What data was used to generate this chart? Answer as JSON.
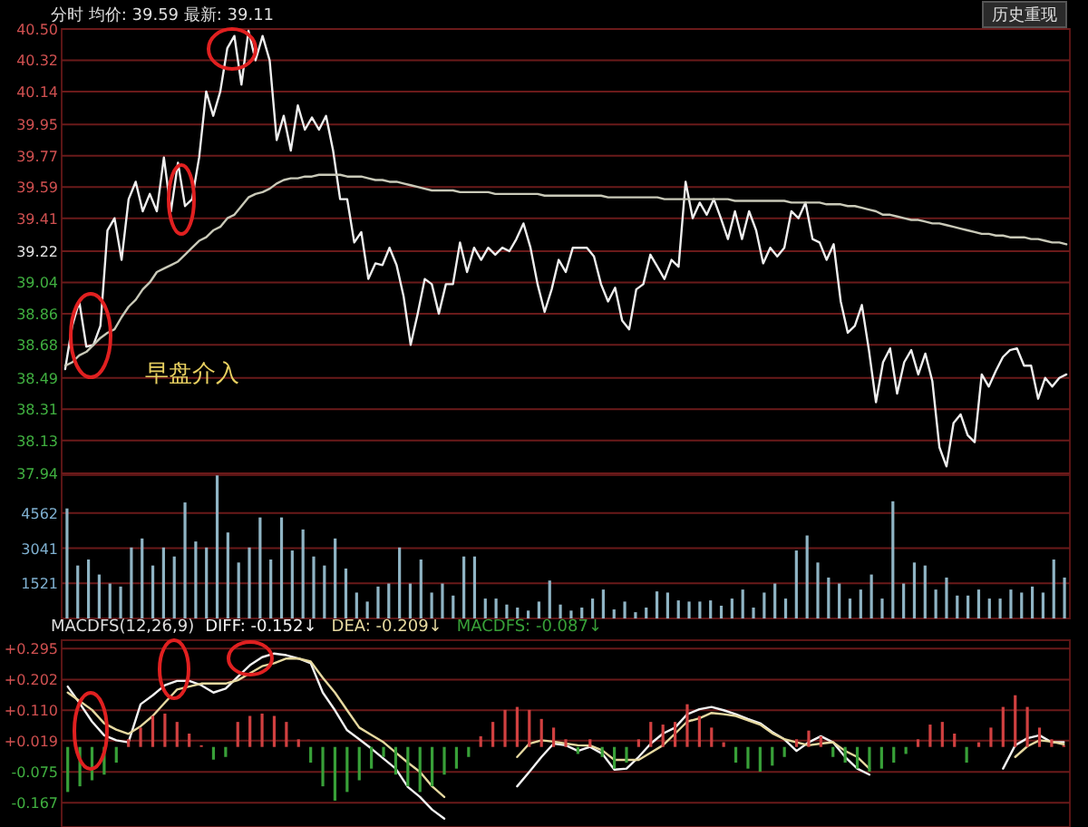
{
  "chart_data": [
    {
      "type": "line",
      "title": "分时  均价: 39.59  最新: 39.11",
      "ylim": [
        37.94,
        40.5
      ],
      "yticks": [
        {
          "value": 40.5,
          "label": "40.50"
        },
        40.32,
        40.14,
        39.95,
        39.77,
        39.59,
        39.41,
        39.22,
        39.04,
        38.86,
        38.68,
        38.49,
        38.31,
        38.13,
        37.94
      ],
      "grid": "y",
      "tick_labels": "y",
      "annotations": [
        "早盘介入",
        "历史重现"
      ],
      "categories": [
        null,
        null,
        null,
        null,
        null,
        null,
        null,
        null,
        null,
        null,
        null,
        null,
        null,
        null,
        null,
        null,
        null,
        null,
        null,
        null,
        null,
        null,
        null,
        null,
        null,
        null,
        null,
        null,
        null,
        null,
        null,
        null,
        null,
        null,
        null,
        null,
        null,
        null,
        null,
        null,
        null,
        null,
        null,
        null,
        null,
        null,
        null,
        null,
        null,
        null,
        null,
        null,
        null,
        null,
        null,
        null,
        null,
        null,
        null,
        null,
        null,
        null,
        null,
        null,
        null,
        null,
        null,
        null,
        null,
        null,
        null,
        null,
        null,
        null,
        null,
        null,
        null,
        null,
        null,
        null,
        null,
        null,
        null,
        null,
        null,
        null,
        null,
        null,
        null,
        null,
        null,
        null,
        null,
        null,
        null,
        null,
        null,
        null,
        null,
        null,
        null,
        null,
        null,
        null,
        null,
        null,
        null,
        null,
        null,
        null,
        null,
        null,
        null,
        null,
        null,
        null,
        null,
        null,
        null,
        null,
        null,
        null,
        null,
        null,
        null,
        null,
        null,
        null,
        null,
        null,
        null,
        null,
        null,
        null,
        null,
        null,
        null,
        null,
        null,
        null,
        null,
        null,
        null
      ],
      "series": [
        {
          "color": "#eeeeee",
          "values": [
            38.54,
            38.79,
            38.93,
            38.67,
            38.68,
            38.79,
            39.34,
            39.41,
            39.17,
            39.52,
            39.62,
            39.45,
            39.55,
            39.45,
            39.76,
            39.45,
            39.73,
            39.48,
            39.52,
            39.76,
            40.14,
            40.0,
            40.14,
            40.39,
            40.46,
            40.18,
            40.49,
            40.32,
            40.46,
            40.32,
            39.86,
            40.0,
            39.8,
            40.06,
            39.92,
            39.99,
            39.92,
            40.0,
            39.8,
            39.52,
            39.52,
            39.27,
            39.33,
            39.06,
            39.15,
            39.14,
            39.24,
            39.14,
            38.96,
            38.68,
            38.86,
            39.06,
            39.03,
            38.86,
            39.03,
            39.03,
            39.27,
            39.1,
            39.24,
            39.17,
            39.24,
            39.2,
            39.24,
            39.22,
            39.29,
            39.38,
            39.24,
            39.03,
            38.87,
            39.0,
            39.17,
            39.1,
            39.24,
            39.24,
            39.24,
            39.19,
            39.03,
            38.93,
            39.01,
            38.82,
            38.77,
            39.0,
            39.03,
            39.2,
            39.13,
            39.06,
            39.17,
            39.13,
            39.62,
            39.41,
            39.5,
            39.43,
            39.52,
            39.41,
            39.29,
            39.45,
            39.29,
            39.45,
            39.34,
            39.15,
            39.24,
            39.19,
            39.24,
            39.45,
            39.41,
            39.5,
            39.29,
            39.27,
            39.17,
            39.26,
            38.93,
            38.75,
            38.79,
            38.91,
            38.65,
            38.35,
            38.58,
            38.66,
            38.4,
            38.58,
            38.65,
            38.51,
            38.63,
            38.47,
            38.09,
            37.98,
            38.23,
            38.28,
            38.16,
            38.12,
            38.51,
            38.44,
            38.53,
            38.61,
            38.65,
            38.66,
            38.56,
            38.56,
            38.37,
            38.49,
            38.44,
            38.49,
            38.51
          ]
        },
        {
          "color": "#c9c9b8",
          "values": [
            38.56,
            38.58,
            38.62,
            38.64,
            38.68,
            38.72,
            38.75,
            38.77,
            38.84,
            38.9,
            38.94,
            39.0,
            39.04,
            39.1,
            39.12,
            39.14,
            39.16,
            39.2,
            39.24,
            39.28,
            39.3,
            39.34,
            39.36,
            39.41,
            39.43,
            39.48,
            39.53,
            39.55,
            39.56,
            39.58,
            39.61,
            39.63,
            39.64,
            39.64,
            39.65,
            39.65,
            39.66,
            39.66,
            39.66,
            39.66,
            39.65,
            39.65,
            39.65,
            39.64,
            39.63,
            39.63,
            39.62,
            39.62,
            39.61,
            39.6,
            39.59,
            39.58,
            39.57,
            39.57,
            39.57,
            39.57,
            39.56,
            39.56,
            39.56,
            39.56,
            39.56,
            39.55,
            39.55,
            39.55,
            39.55,
            39.55,
            39.55,
            39.55,
            39.54,
            39.54,
            39.54,
            39.54,
            39.54,
            39.54,
            39.54,
            39.54,
            39.54,
            39.53,
            39.53,
            39.53,
            39.53,
            39.53,
            39.53,
            39.53,
            39.53,
            39.52,
            39.52,
            39.52,
            39.52,
            39.52,
            39.52,
            39.52,
            39.52,
            39.52,
            39.52,
            39.51,
            39.51,
            39.51,
            39.51,
            39.51,
            39.51,
            39.51,
            39.51,
            39.5,
            39.5,
            39.5,
            39.5,
            39.5,
            39.49,
            39.49,
            39.49,
            39.48,
            39.48,
            39.47,
            39.46,
            39.45,
            39.43,
            39.43,
            39.42,
            39.41,
            39.4,
            39.4,
            39.39,
            39.38,
            39.38,
            39.37,
            39.36,
            39.35,
            39.34,
            39.33,
            39.32,
            39.32,
            39.31,
            39.31,
            39.3,
            39.3,
            39.3,
            39.29,
            39.29,
            39.28,
            39.27,
            39.27,
            39.26
          ]
        }
      ]
    },
    {
      "type": "bar",
      "ylim": [
        0,
        6200
      ],
      "yticks": [
        1521,
        3041,
        4562
      ],
      "grid": "y",
      "tick_labels": "y",
      "color": "#8fb4c4",
      "categories": [
        null,
        null,
        null,
        null,
        null,
        null,
        null,
        null,
        null,
        null,
        null,
        null,
        null,
        null,
        null,
        null,
        null,
        null,
        null,
        null,
        null,
        null,
        null,
        null,
        null,
        null,
        null,
        null,
        null,
        null,
        null,
        null,
        null,
        null,
        null,
        null,
        null,
        null,
        null,
        null,
        null,
        null,
        null,
        null,
        null,
        null,
        null,
        null,
        null,
        null,
        null,
        null,
        null,
        null,
        null,
        null,
        null,
        null,
        null,
        null,
        null,
        null,
        null,
        null,
        null,
        null,
        null,
        null,
        null,
        null,
        null,
        null,
        null,
        null,
        null,
        null,
        null,
        null,
        null,
        null,
        null,
        null,
        null,
        null,
        null,
        null,
        null,
        null,
        null,
        null,
        null,
        null,
        null,
        null
      ],
      "values": [
        4760,
        2290,
        2550,
        1900,
        1510,
        1380,
        3070,
        3460,
        2290,
        3070,
        2680,
        5020,
        3330,
        3070,
        6190,
        3720,
        2420,
        3070,
        4370,
        2550,
        4370,
        2940,
        3850,
        2680,
        2290,
        3460,
        2160,
        1120,
        730,
        1380,
        1510,
        3070,
        1510,
        2550,
        1120,
        1510,
        990,
        2680,
        2680,
        860,
        860,
        600,
        470,
        340,
        730,
        1640,
        600,
        340,
        470,
        860,
        1250,
        390,
        730,
        270,
        470,
        1170,
        1120,
        780,
        730,
        730,
        780,
        550,
        860,
        1250,
        470,
        1120,
        1510,
        860,
        2940,
        3590,
        2420,
        1770,
        1510,
        860,
        1250,
        1900,
        860,
        5070,
        1510,
        2420,
        2290,
        1250,
        1770,
        990,
        990,
        1250,
        860,
        860,
        1250,
        1120,
        1380,
        1120,
        2550,
        1770
      ]
    },
    {
      "type": "bar",
      "title": "MACDFS(12,26,9)",
      "ylim": [
        -0.24,
        0.32
      ],
      "yticks": [
        {
          "value": 0.295,
          "label": "+0.295"
        },
        {
          "value": 0.202,
          "label": "+0.202"
        },
        {
          "value": 0.11,
          "label": "+0.110"
        },
        {
          "value": 0.019,
          "label": "+0.019"
        },
        -0.075,
        -0.167
      ],
      "grid": "y",
      "tick_labels": "y",
      "categories": [
        null,
        null,
        null,
        null,
        null,
        null,
        null,
        null,
        null,
        null,
        null,
        null,
        null,
        null,
        null,
        null,
        null,
        null,
        null,
        null,
        null,
        null,
        null,
        null,
        null,
        null,
        null,
        null,
        null,
        null,
        null,
        null,
        null,
        null,
        null,
        null,
        null,
        null,
        null,
        null,
        null,
        null,
        null,
        null,
        null,
        null,
        null,
        null,
        null,
        null,
        null,
        null,
        null,
        null,
        null,
        null,
        null,
        null,
        null,
        null,
        null,
        null,
        null,
        null,
        null,
        null,
        null,
        null,
        null,
        null,
        null,
        null,
        null,
        null,
        null,
        null,
        null,
        null,
        null,
        null,
        null,
        null,
        null
      ],
      "series": [
        {
          "name": "DIFF: -0.152↓",
          "type": "line",
          "color": "#f2f2f2",
          "values": [
            0.181,
            0.13,
            0.076,
            0.035,
            0.02,
            0.014,
            0.128,
            0.155,
            0.185,
            0.198,
            0.198,
            0.185,
            0.163,
            0.175,
            0.21,
            0.245,
            0.269,
            0.28,
            0.275,
            0.265,
            0.251,
            0.163,
            0.11,
            0.05,
            0.023,
            -0.005,
            -0.035,
            -0.065,
            -0.12,
            -0.15,
            -0.188,
            -0.215,
            null,
            null,
            null,
            null,
            null,
            -0.118,
            -0.075,
            -0.03,
            0.01,
            0.005,
            -0.012,
            0.0,
            -0.02,
            -0.068,
            -0.065,
            -0.03,
            0.01,
            0.04,
            0.058,
            0.098,
            0.113,
            0.12,
            0.11,
            0.098,
            0.084,
            0.071,
            0.045,
            0.023,
            -0.012,
            0.014,
            0.032,
            0.014,
            -0.03,
            -0.065,
            -0.083,
            null,
            null,
            null,
            null,
            null,
            null,
            null,
            null,
            null,
            null,
            -0.065,
            0.005,
            0.026,
            0.035,
            0.014,
            0.014
          ]
        },
        {
          "name": "DEA: -0.209↓",
          "type": "line",
          "color": "#e6d9a0",
          "values": [
            0.163,
            0.137,
            0.111,
            0.071,
            0.052,
            0.039,
            0.062,
            0.093,
            0.133,
            0.172,
            0.181,
            0.19,
            0.19,
            0.19,
            0.2,
            0.221,
            0.242,
            0.251,
            0.265,
            0.265,
            0.256,
            0.207,
            0.163,
            0.11,
            0.058,
            0.036,
            0.014,
            -0.017,
            -0.047,
            -0.075,
            -0.118,
            -0.15,
            null,
            null,
            null,
            null,
            null,
            -0.03,
            0.01,
            0.02,
            0.016,
            0.01,
            0.005,
            0.004,
            -0.01,
            -0.039,
            -0.039,
            -0.039,
            -0.017,
            0.005,
            0.04,
            0.076,
            0.086,
            0.102,
            0.098,
            0.093,
            0.08,
            0.067,
            0.041,
            0.023,
            0.014,
            0.005,
            0.01,
            0.014,
            -0.012,
            -0.03,
            -0.065,
            null,
            null,
            null,
            null,
            null,
            null,
            null,
            null,
            null,
            null,
            null,
            -0.03,
            0.002,
            0.02,
            0.016,
            0.008
          ]
        },
        {
          "name": "MACDFS: -0.087↓",
          "type": "bar",
          "color": "#38a038",
          "values": [
            -0.135,
            -0.118,
            -0.1,
            -0.083,
            -0.047,
            0.023,
            0.058,
            0.093,
            0.1,
            0.075,
            0.04,
            0.005,
            -0.038,
            -0.03,
            0.075,
            0.093,
            0.1,
            0.093,
            0.075,
            0.023,
            -0.047,
            -0.118,
            -0.161,
            -0.135,
            -0.1,
            -0.065,
            -0.03,
            -0.083,
            -0.118,
            -0.135,
            -0.118,
            -0.083,
            -0.065,
            -0.03,
            0.032,
            0.075,
            0.111,
            0.12,
            0.111,
            0.084,
            0.058,
            0.023,
            -0.021,
            0.023,
            -0.03,
            -0.065,
            -0.047,
            0.023,
            0.075,
            0.067,
            0.075,
            0.128,
            0.093,
            0.058,
            0.014,
            -0.047,
            -0.065,
            -0.074,
            -0.056,
            -0.03,
            0.023,
            0.049,
            0.032,
            -0.03,
            -0.047,
            -0.065,
            -0.074,
            -0.065,
            -0.047,
            -0.021,
            0.023,
            0.067,
            0.075,
            0.04,
            -0.047,
            0.014,
            0.058,
            0.12,
            0.155,
            0.12,
            0.058,
            0.023,
            0.005
          ],
          "colors": [
            "#38a038",
            "#38a038",
            "#38a038",
            "#38a038",
            "#38a038",
            "#d04040",
            "#d04040",
            "#d04040",
            "#d04040",
            "#d04040",
            "#d04040",
            "#d04040",
            "#38a038",
            "#38a038",
            "#d04040",
            "#d04040",
            "#d04040",
            "#d04040",
            "#d04040",
            "#d04040",
            "#38a038",
            "#38a038",
            "#38a038",
            "#38a038",
            "#38a038",
            "#38a038",
            "#38a038",
            "#38a038",
            "#38a038",
            "#38a038",
            "#38a038",
            "#38a038",
            "#38a038",
            "#38a038",
            "#d04040",
            "#d04040",
            "#d04040",
            "#d04040",
            "#d04040",
            "#d04040",
            "#d04040",
            "#d04040",
            "#38a038",
            "#d04040",
            "#38a038",
            "#38a038",
            "#38a038",
            "#d04040",
            "#d04040",
            "#d04040",
            "#d04040",
            "#d04040",
            "#d04040",
            "#d04040",
            "#d04040",
            "#38a038",
            "#38a038",
            "#38a038",
            "#38a038",
            "#38a038",
            "#d04040",
            "#d04040",
            "#d04040",
            "#38a038",
            "#38a038",
            "#38a038",
            "#38a038",
            "#38a038",
            "#38a038",
            "#38a038",
            "#d04040",
            "#d04040",
            "#d04040",
            "#d04040",
            "#38a038",
            "#d04040",
            "#d04040",
            "#d04040",
            "#d04040",
            "#d04040",
            "#d04040",
            "#d04040",
            "#d04040"
          ]
        }
      ]
    }
  ]
}
